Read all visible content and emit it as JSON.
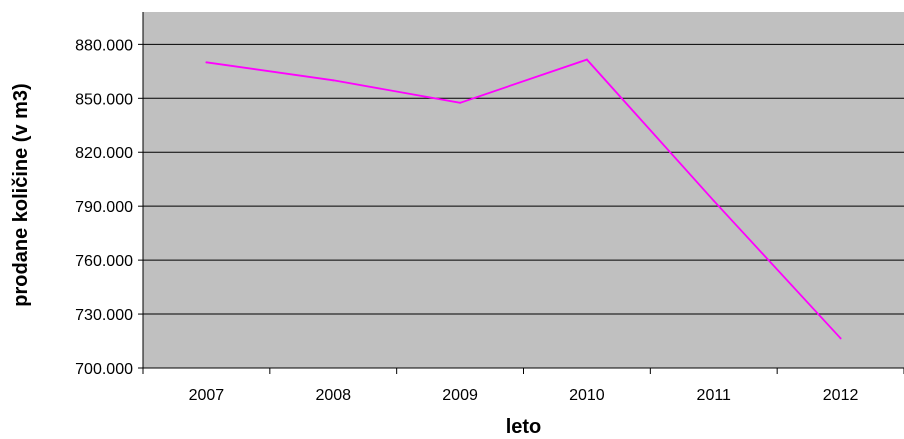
{
  "chart_data": {
    "type": "line",
    "title": "",
    "xlabel": "leto",
    "ylabel": "prodane količine (v m3)",
    "categories": [
      "2007",
      "2008",
      "2009",
      "2010",
      "2011",
      "2012"
    ],
    "series": [
      {
        "values": [
          870000,
          860000,
          847500,
          871500,
          793000,
          716500
        ]
      }
    ],
    "ylim": [
      700000,
      898000
    ],
    "yticks": [
      700000,
      730000,
      760000,
      790000,
      820000,
      850000,
      880000
    ],
    "ytick_labels": [
      "700.000",
      "730.000",
      "760.000",
      "790.000",
      "820.000",
      "850.000",
      "880.000"
    ],
    "grid": true,
    "legend": "none",
    "colors": {
      "plot_background": "#c0c0c0",
      "line": "#ff00ff",
      "gridline": "#000000"
    }
  }
}
